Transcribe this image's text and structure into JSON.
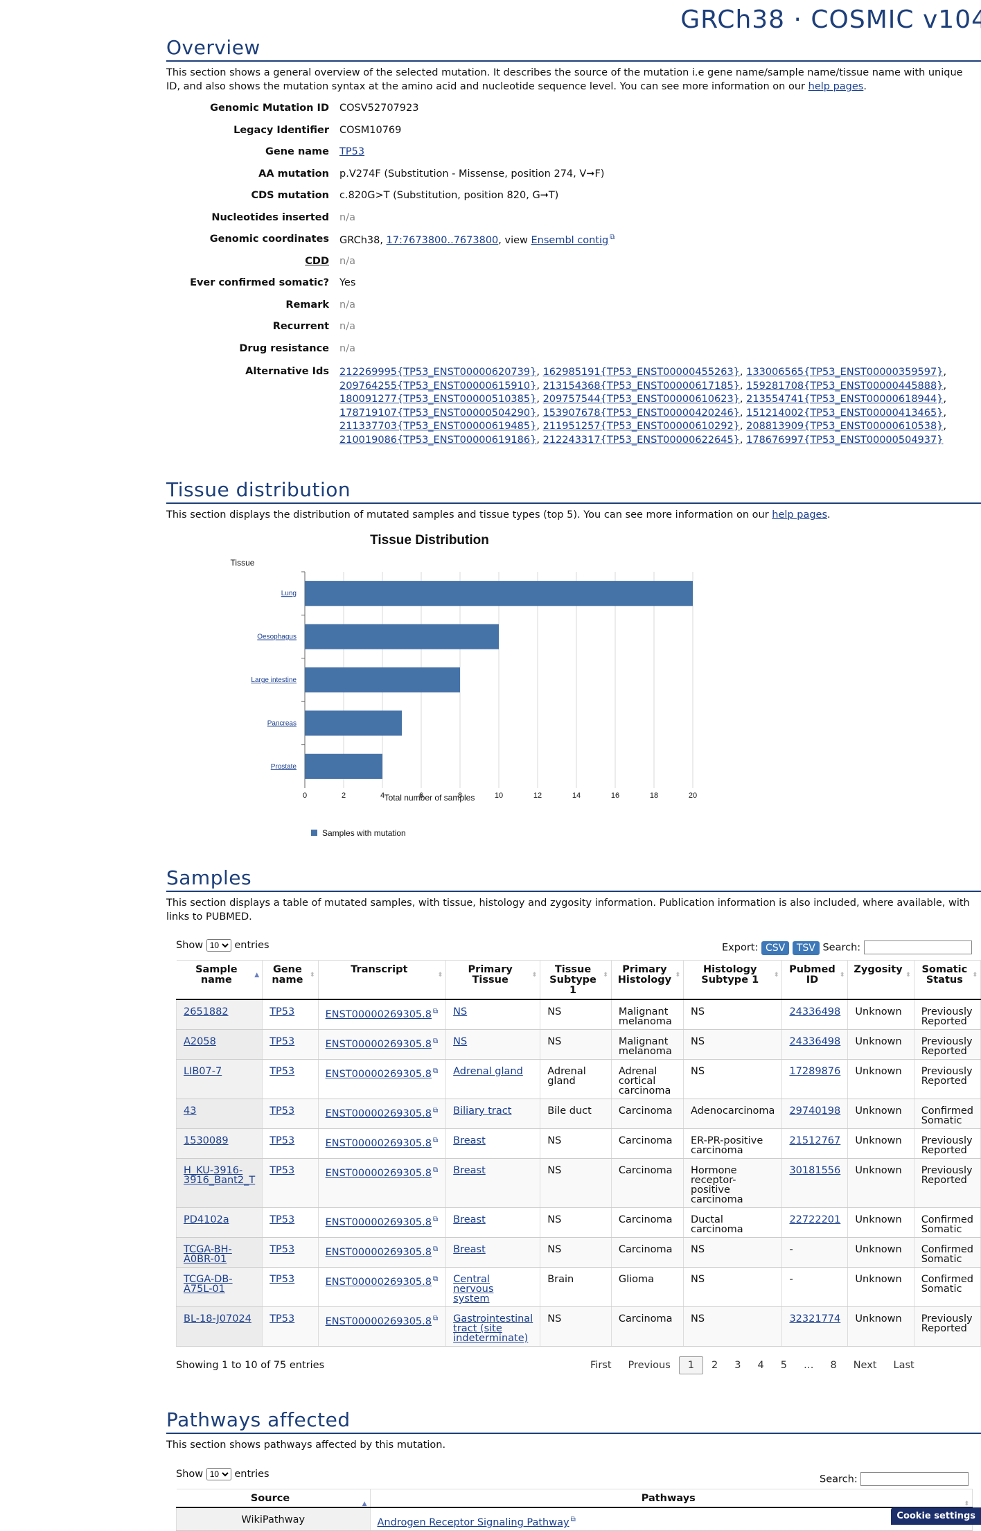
{
  "build_title": "GRCh38 · COSMIC v104",
  "overview": {
    "title": "Overview",
    "desc_before": "This section shows a general overview of the selected mutation. It describes the source of the mutation i.e gene name/sample name/tissue name with unique ID, and also shows the mutation syntax at the amino acid and nucleotide sequence level. You can see more information on our ",
    "help_link": "help pages",
    "desc_after": ".",
    "fields": {
      "genomic_mutation_id": {
        "label": "Genomic Mutation ID",
        "value": "COSV52707923"
      },
      "legacy_identifier": {
        "label": "Legacy Identifier",
        "value": "COSM10769"
      },
      "gene_name": {
        "label": "Gene name",
        "value": "TP53"
      },
      "aa_mutation": {
        "label": "AA mutation",
        "value": "p.V274F (Substitution - Missense, position 274, V➞F)"
      },
      "cds_mutation": {
        "label": "CDS mutation",
        "value": "c.820G>T (Substitution, position 820, G➞T)"
      },
      "nucleotides_inserted": {
        "label": "Nucleotides inserted",
        "value": "n/a"
      },
      "genomic_coordinates": {
        "label": "Genomic coordinates",
        "prefix": "GRCh38, ",
        "coord_link": "17:7673800..7673800",
        "mid": ", view ",
        "ensembl_link": "Ensembl contig"
      },
      "cdd": {
        "label": "CDD",
        "value": "n/a"
      },
      "ever_confirmed_somatic": {
        "label": "Ever confirmed somatic?",
        "value": "Yes"
      },
      "remark": {
        "label": "Remark",
        "value": "n/a"
      },
      "recurrent": {
        "label": "Recurrent",
        "value": "n/a"
      },
      "drug_resistance": {
        "label": "Drug resistance",
        "value": "n/a"
      },
      "alternative_ids": {
        "label": "Alternative Ids",
        "values": [
          "212269995{TP53_ENST00000620739}",
          "162985191{TP53_ENST00000455263}",
          "133006565{TP53_ENST00000359597}",
          "209764255{TP53_ENST00000615910}",
          "213154368{TP53_ENST00000617185}",
          "159281708{TP53_ENST00000445888}",
          "180091277{TP53_ENST00000510385}",
          "209757544{TP53_ENST00000610623}",
          "213554741{TP53_ENST00000618944}",
          "178719107{TP53_ENST00000504290}",
          "153907678{TP53_ENST00000420246}",
          "151214002{TP53_ENST00000413465}",
          "211337703{TP53_ENST00000619485}",
          "211951257{TP53_ENST00000610292}",
          "208813909{TP53_ENST00000610538}",
          "210019086{TP53_ENST00000619186}",
          "212243317{TP53_ENST00000622645}",
          "178676997{TP53_ENST00000504937}"
        ]
      }
    }
  },
  "tissue": {
    "title": "Tissue distribution",
    "desc_before": "This section displays the distribution of mutated samples and tissue types (top 5). You can see more information on our ",
    "help_link": "help pages",
    "desc_after": "."
  },
  "chart_data": {
    "type": "bar",
    "orientation": "horizontal",
    "title": "Tissue Distribution",
    "ylabel": "Tissue",
    "xlabel": "Total number of samples",
    "categories": [
      "Lung",
      "Oesophagus",
      "Large intestine",
      "Pancreas",
      "Prostate"
    ],
    "series": [
      {
        "name": "Samples with mutation",
        "values": [
          20,
          10,
          8,
          5,
          4
        ]
      }
    ],
    "xlim": [
      0,
      20
    ],
    "xticks": [
      0,
      2,
      4,
      6,
      8,
      10,
      12,
      14,
      16,
      18,
      20
    ],
    "grid": true,
    "legend": "bottom-left",
    "bar_color": "#4572a7"
  },
  "samples": {
    "title": "Samples",
    "desc": "This section displays a table of mutated samples, with tissue, histology and zygosity information. Publication information is also included, where available, with links to PUBMED.",
    "show_label": "Show",
    "entries_label": "entries",
    "length_value": "10",
    "export_label": "Export:",
    "csv": "CSV",
    "tsv": "TSV",
    "search_label": "Search:",
    "columns": [
      "Sample name",
      "Gene name",
      "Transcript",
      "Primary Tissue",
      "Tissue Subtype 1",
      "Primary Histology",
      "Histology Subtype 1",
      "Pubmed ID",
      "Zygosity",
      "Somatic Status"
    ],
    "rows": [
      [
        "2651882",
        "TP53",
        "ENST00000269305.8",
        "NS",
        "NS",
        "Malignant melanoma",
        "NS",
        "24336498",
        "Unknown",
        "Previously Reported"
      ],
      [
        "A2058",
        "TP53",
        "ENST00000269305.8",
        "NS",
        "NS",
        "Malignant melanoma",
        "NS",
        "24336498",
        "Unknown",
        "Previously Reported"
      ],
      [
        "LIB07-7",
        "TP53",
        "ENST00000269305.8",
        "Adrenal gland",
        "Adrenal gland",
        "Adrenal cortical carcinoma",
        "NS",
        "17289876",
        "Unknown",
        "Previously Reported"
      ],
      [
        "43",
        "TP53",
        "ENST00000269305.8",
        "Biliary tract",
        "Bile duct",
        "Carcinoma",
        "Adenocarcinoma",
        "29740198",
        "Unknown",
        "Confirmed Somatic"
      ],
      [
        "1530089",
        "TP53",
        "ENST00000269305.8",
        "Breast",
        "NS",
        "Carcinoma",
        "ER-PR-positive carcinoma",
        "21512767",
        "Unknown",
        "Previously Reported"
      ],
      [
        "H_KU-3916-3916_Bant2_T",
        "TP53",
        "ENST00000269305.8",
        "Breast",
        "NS",
        "Carcinoma",
        "Hormone receptor-positive carcinoma",
        "30181556",
        "Unknown",
        "Previously Reported"
      ],
      [
        "PD4102a",
        "TP53",
        "ENST00000269305.8",
        "Breast",
        "NS",
        "Carcinoma",
        "Ductal carcinoma",
        "22722201",
        "Unknown",
        "Confirmed Somatic"
      ],
      [
        "TCGA-BH-A0BR-01",
        "TP53",
        "ENST00000269305.8",
        "Breast",
        "NS",
        "Carcinoma",
        "NS",
        "-",
        "Unknown",
        "Confirmed Somatic"
      ],
      [
        "TCGA-DB-A75L-01",
        "TP53",
        "ENST00000269305.8",
        "Central nervous system",
        "Brain",
        "Glioma",
        "NS",
        "-",
        "Unknown",
        "Confirmed Somatic"
      ],
      [
        "BL-18-J07024",
        "TP53",
        "ENST00000269305.8",
        "Gastrointestinal tract (site indeterminate)",
        "NS",
        "Carcinoma",
        "NS",
        "32321774",
        "Unknown",
        "Previously Reported"
      ]
    ],
    "info": "Showing 1 to 10 of 75 entries",
    "pager": [
      "First",
      "Previous",
      "1",
      "2",
      "3",
      "4",
      "5",
      "…",
      "8",
      "Next",
      "Last"
    ],
    "current_page": "1"
  },
  "pathways": {
    "title": "Pathways affected",
    "desc": "This section shows pathways affected by this mutation.",
    "show_label": "Show",
    "entries_label": "entries",
    "length_value": "10",
    "search_label": "Search:",
    "columns": [
      "Source",
      "Pathways"
    ],
    "row": {
      "source": "WikiPathway",
      "pathway": "Androgen Receptor Signaling Pathway"
    }
  },
  "cookie_button": "Cookie settings"
}
